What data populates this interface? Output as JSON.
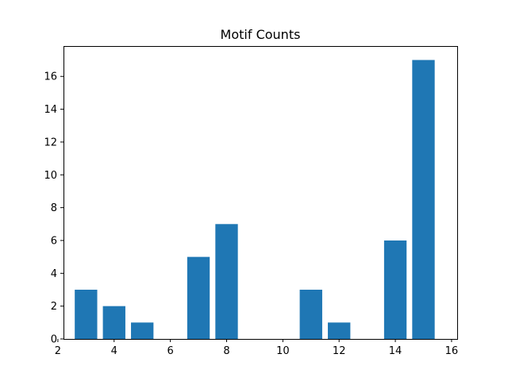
{
  "chart_data": {
    "type": "bar",
    "title": "Motif Counts",
    "xlabel": "",
    "ylabel": "",
    "x": [
      3,
      4,
      5,
      7,
      8,
      11,
      12,
      14,
      15
    ],
    "values": [
      3,
      2,
      1,
      5,
      7,
      3,
      1,
      6,
      17
    ],
    "xlim": [
      2.2,
      16.2
    ],
    "ylim": [
      0,
      17.85
    ],
    "xticks": [
      2,
      4,
      6,
      8,
      10,
      12,
      14,
      16
    ],
    "yticks": [
      0,
      2,
      4,
      6,
      8,
      10,
      12,
      14,
      16
    ],
    "grid": false,
    "bar_color": "#1f77b4"
  }
}
